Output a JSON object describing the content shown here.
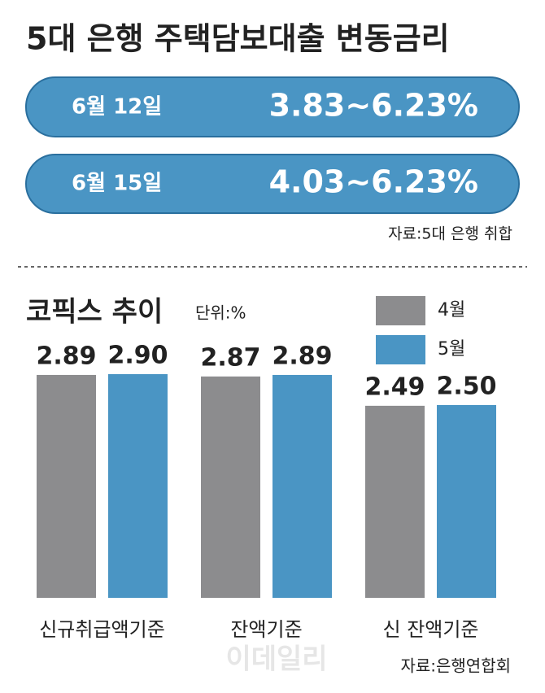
{
  "header": {
    "title": "5대 은행 주택담보대출 변동금리",
    "rows": [
      {
        "date": "6월 12일",
        "range": "3.83~6.23%"
      },
      {
        "date": "6월 15일",
        "range": "4.03~6.23%"
      }
    ],
    "source": "자료:5대 은행 취합"
  },
  "chart_data": {
    "type": "bar",
    "title": "코픽스 추이",
    "unit": "단위:%",
    "categories": [
      "신규취급액기준",
      "잔액기준",
      "신 잔액기준"
    ],
    "series": [
      {
        "name": "4월",
        "color": "#8c8c8e",
        "values": [
          2.89,
          2.87,
          2.49
        ],
        "value_labels": [
          "2.89",
          "2.87",
          "2.49"
        ]
      },
      {
        "name": "5월",
        "color": "#4a95c4",
        "values": [
          2.9,
          2.89,
          2.5
        ],
        "value_labels": [
          "2.90",
          "2.89",
          "2.50"
        ]
      }
    ],
    "source": "자료:은행연합회",
    "watermark": "이데일리"
  }
}
